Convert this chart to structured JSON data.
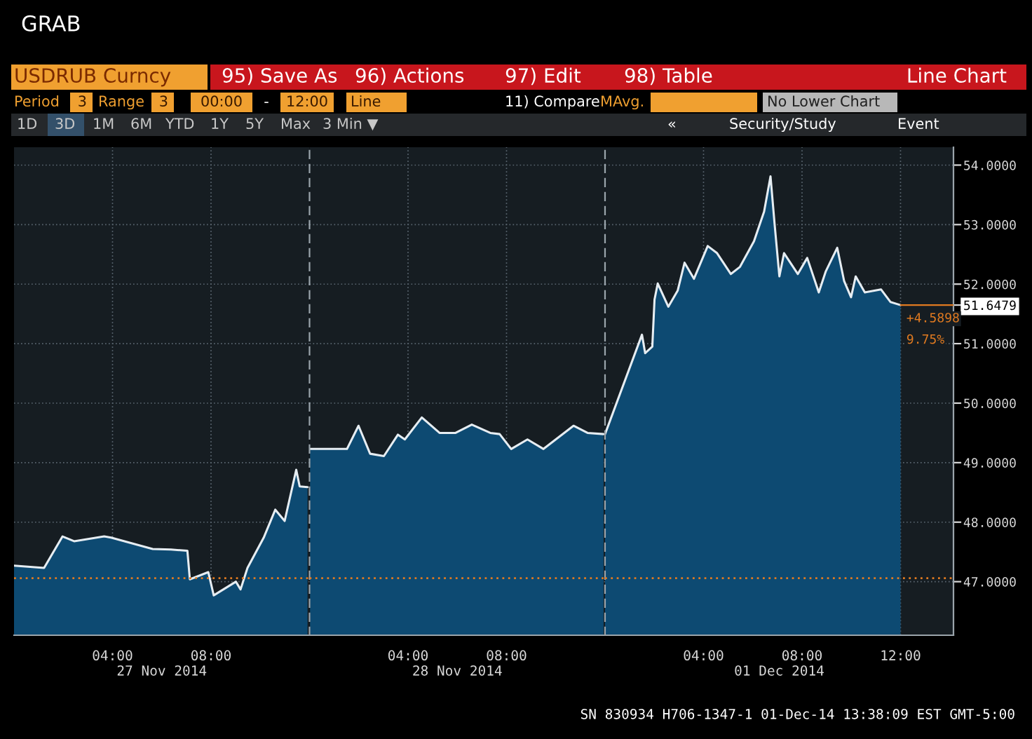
{
  "chart_data": [
    {
      "type": "area",
      "x": [
        0,
        1.22,
        1.97,
        2.44,
        3.66,
        3.94,
        5.63,
        6.37,
        7.04,
        7.14,
        7.89,
        8.11,
        9.01,
        9.2,
        9.48,
        10.14,
        10.61,
        10.99,
        11.46,
        11.6,
        11.92
      ],
      "series": [
        {
          "color": "#0d4a72",
          "values": [
            47.27,
            47.23,
            47.76,
            47.68,
            47.76,
            47.74,
            47.55,
            47.54,
            47.52,
            47.04,
            47.16,
            46.77,
            47.0,
            46.87,
            47.23,
            47.74,
            48.21,
            48.02,
            48.88,
            48.6,
            48.59
          ]
        }
      ],
      "xlabel": "27 Nov 2014",
      "xlim": [
        0,
        12
      ],
      "xticks": [
        {
          "value": 4,
          "label": "04:00"
        },
        {
          "value": 8,
          "label": "08:00"
        }
      ],
      "ylim": [
        46.1,
        54.3
      ],
      "yticks": [
        47,
        48,
        49,
        50,
        51,
        52,
        53,
        54
      ],
      "tick_labels": "x",
      "grid": true,
      "ref_lines": [
        {
          "axis": "y",
          "value": 47.06,
          "color": "#e07a20",
          "line_style": "dotted"
        }
      ],
      "annotations": [
        "GRAB",
        "USDRUB Curncy",
        "95) Save As",
        "96) Actions",
        "97) Edit",
        "98) Table",
        "Line Chart",
        "Period",
        "3",
        "Range",
        "3",
        "00:00",
        "-",
        "12:00",
        "Line",
        "11) Compare",
        "MAvg.",
        "No Lower Chart",
        "1D",
        "3D",
        "1M",
        "6M",
        "YTD",
        "1Y",
        "5Y",
        "Max",
        "3 Min ▼",
        "«",
        "Security/Study",
        "Event",
        "SN 830934 H706-1347-1 01-Dec-14 13:38:09 EST GMT-5:00"
      ]
    },
    {
      "type": "area",
      "x": [
        0.02,
        1.52,
        1.99,
        2.46,
        3.02,
        3.59,
        3.87,
        4.56,
        5.28,
        5.93,
        6.59,
        7.34,
        7.72,
        8.19,
        8.85,
        9.5,
        10.72,
        11.29,
        11.94
      ],
      "series": [
        {
          "color": "#0d4a72",
          "values": [
            49.23,
            49.23,
            49.62,
            49.15,
            49.11,
            49.47,
            49.39,
            49.76,
            49.5,
            49.5,
            49.64,
            49.5,
            49.48,
            49.23,
            49.39,
            49.23,
            49.62,
            49.5,
            49.48
          ]
        }
      ],
      "xlabel": "28 Nov 2014",
      "xlim": [
        0,
        12
      ],
      "xticks": [
        {
          "value": 4,
          "label": "04:00"
        },
        {
          "value": 8,
          "label": "08:00"
        }
      ],
      "ylim": [
        46.1,
        54.3
      ],
      "yticks": [
        47,
        48,
        49,
        50,
        51,
        52,
        53,
        54
      ],
      "tick_labels": "x",
      "grid": true,
      "ref_lines": [
        {
          "axis": "y",
          "value": 47.06,
          "color": "#e07a20",
          "line_style": "dotted"
        }
      ]
    },
    {
      "type": "area",
      "x": [
        0,
        1.5,
        1.63,
        1.92,
        2.01,
        2.14,
        2.57,
        2.95,
        3.23,
        3.61,
        4.17,
        4.55,
        5.11,
        5.48,
        6.05,
        6.46,
        6.72,
        6.89,
        7.08,
        7.27,
        7.83,
        8.21,
        8.68,
        8.96,
        9.43,
        9.71,
        9.99,
        10.18,
        10.55,
        11.21,
        11.59,
        12
      ],
      "series": [
        {
          "color": "#0d4a72",
          "values": [
            49.48,
            51.15,
            50.84,
            50.95,
            51.74,
            52.01,
            51.62,
            51.89,
            52.36,
            52.09,
            52.64,
            52.52,
            52.17,
            52.29,
            52.72,
            53.22,
            53.81,
            52.99,
            52.13,
            52.52,
            52.17,
            52.44,
            51.86,
            52.21,
            52.61,
            52.05,
            51.78,
            52.13,
            51.86,
            51.91,
            51.7,
            51.6479
          ]
        }
      ],
      "xlabel": "01 Dec 2014",
      "xlim": [
        0,
        14.15
      ],
      "xticks": [
        {
          "value": 4,
          "label": "04:00"
        },
        {
          "value": 8,
          "label": "08:00"
        },
        {
          "value": 12,
          "label": "12:00"
        }
      ],
      "ylim": [
        46.1,
        54.3
      ],
      "yticks": [
        {
          "value": 47,
          "label": "47.0000"
        },
        {
          "value": 48,
          "label": "48.0000"
        },
        {
          "value": 49,
          "label": "49.0000"
        },
        {
          "value": 50,
          "label": "50.0000"
        },
        {
          "value": 51,
          "label": "51.0000"
        },
        {
          "value": 51.6479,
          "label": "51.6479"
        },
        {
          "value": 52,
          "label": "52.0000"
        },
        {
          "value": 53,
          "label": "53.0000"
        },
        {
          "value": 54,
          "label": "54.0000"
        }
      ],
      "grid": true,
      "ref_lines": [
        {
          "axis": "y",
          "value": 47.06,
          "color": "#e07a20",
          "line_style": "dotted"
        }
      ],
      "annotations": [
        {
          "text": "+4.5898",
          "x": 12,
          "y": 51.6479
        },
        {
          "text": "9.75%",
          "x": 12,
          "y": 51.6479
        }
      ]
    }
  ]
}
